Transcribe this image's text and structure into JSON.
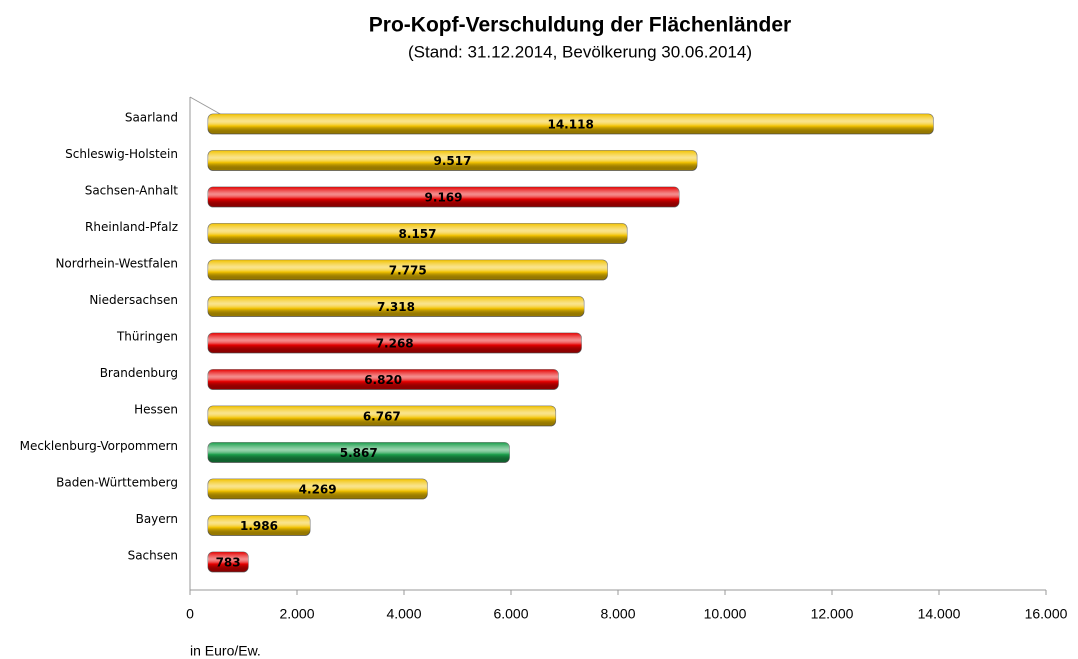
{
  "chart_data": {
    "type": "barh",
    "title": "Pro-Kopf-Verschuldung der Flächenländer",
    "subtitle": "(Stand: 31.12.2014, Bevölkerung 30.06.2014)",
    "x_label": "in Euro/Ew.",
    "categories": [
      "Saarland",
      "Schleswig-Holstein",
      "Sachsen-Anhalt",
      "Rheinland-Pfalz",
      "Nordrhein-Westfalen",
      "Niedersachsen",
      "Thüringen",
      "Brandenburg",
      "Hessen",
      "Mecklenburg-Vorpommern",
      "Baden-Württemberg",
      "Bayern",
      "Sachsen"
    ],
    "values": [
      14118,
      9517,
      9169,
      8157,
      7775,
      7318,
      7268,
      6820,
      6767,
      5867,
      4269,
      1986,
      783
    ],
    "value_labels": [
      "14.118",
      "9.517",
      "9.169",
      "8.157",
      "7.775",
      "7.318",
      "7.268",
      "6.820",
      "6.767",
      "5.867",
      "4.269",
      "1.986",
      "783"
    ],
    "colors": [
      "#f2c200",
      "#f2c200",
      "#e60000",
      "#f2c200",
      "#f2c200",
      "#f2c200",
      "#e60000",
      "#e60000",
      "#f2c200",
      "#1a9e4a",
      "#f2c200",
      "#f2c200",
      "#e60000"
    ],
    "xlim": [
      0,
      16000
    ],
    "xticks": [
      0,
      {
        "value": 2000,
        "label": "2.000"
      },
      {
        "value": 4000,
        "label": "4.000"
      },
      {
        "value": 6000,
        "label": "6.000"
      },
      {
        "value": 8000,
        "label": "8.000"
      },
      {
        "value": 10000,
        "label": "10.000"
      },
      {
        "value": 12000,
        "label": "12.000"
      },
      {
        "value": 14000,
        "label": "14.000"
      },
      {
        "value": 16000,
        "label": "16.000"
      }
    ]
  }
}
